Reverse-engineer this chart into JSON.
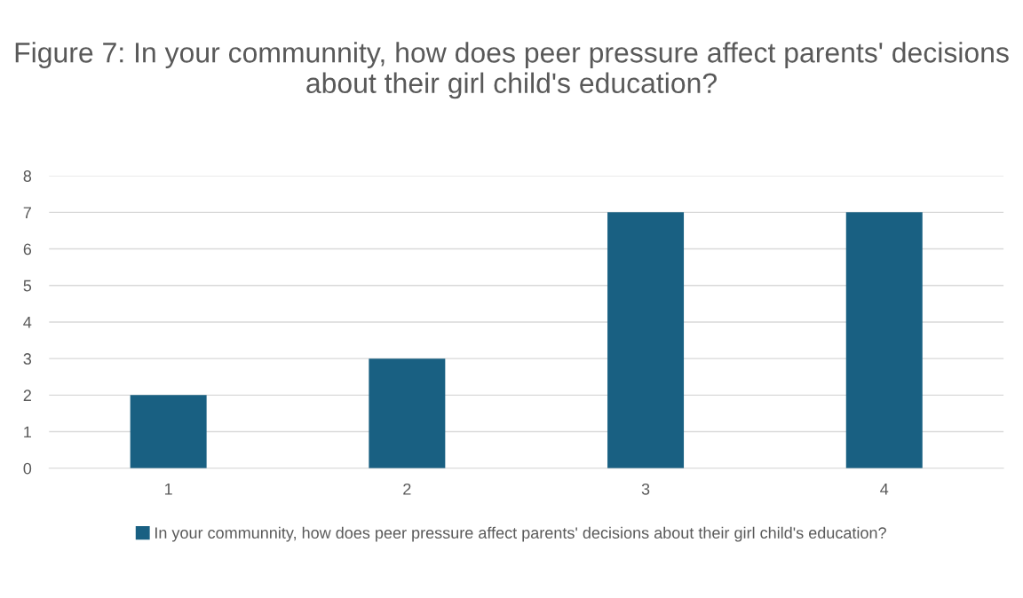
{
  "chart_data": {
    "type": "bar",
    "title": "Figure 7: In your communnity, how does peer pressure affect parents' decisions about their girl child's education?",
    "categories": [
      "1",
      "2",
      "3",
      "4"
    ],
    "series": [
      {
        "name": "In your communnity, how does peer pressure affect parents' decisions about their girl child's education?",
        "color": "#196082",
        "values": [
          2,
          3,
          7,
          7
        ]
      }
    ],
    "ylim": [
      0,
      8
    ],
    "yticks": [
      0,
      1,
      2,
      3,
      4,
      5,
      6,
      7,
      8
    ],
    "grid": "y",
    "legend": "bottom"
  }
}
